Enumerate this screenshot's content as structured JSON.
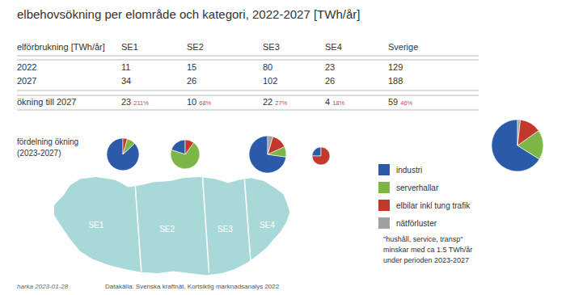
{
  "title": "elbehovsökning per elområde och kategori, 2022-2027 [TWh/år]",
  "annotations": [
    "fördelning ökning\n(2023-2027)",
    "\"hushåll, service, transp\"\nminskar med ca 1.5 TWh/år\nunder perioden 2023-2027",
    "harka 2023-01-28",
    "Datakälla: Svenska kraftnät, Kortsiktig marknadsanalys 2022"
  ],
  "chart_data": [
    {
      "type": "table",
      "xlabel": "elförbrukning [TWh/år]",
      "categories": [
        "SE1",
        "SE2",
        "SE3",
        "SE4",
        "Sverige"
      ],
      "series": [
        {
          "name": "2022",
          "values": [
            11,
            15,
            80,
            23,
            129
          ]
        },
        {
          "name": "2027",
          "values": [
            34,
            26,
            102,
            26,
            188
          ]
        },
        {
          "name": "ökning till 2027",
          "values": [
            23,
            10,
            22,
            4,
            59
          ]
        },
        {
          "values": [
            211,
            68,
            27,
            18,
            46
          ],
          "value_labels": [
            "211%",
            "68%",
            "27%",
            "18%",
            "46%"
          ],
          "color": "#D04070"
        }
      ],
      "data_labels": true
    },
    {
      "type": "pie",
      "title": "SE1",
      "categories": [
        "industri",
        "serverhallar",
        "elbilar inkl tung trafik",
        "nätförluster"
      ],
      "values": [
        20,
        2,
        1,
        0
      ],
      "colors": [
        "#2B5BA8",
        "#7DB646",
        "#C0392B",
        "#A0A0A0"
      ]
    },
    {
      "type": "pie",
      "title": "SE2",
      "categories": [
        "industri",
        "serverhallar",
        "elbilar inkl tung trafik",
        "nätförluster"
      ],
      "values": [
        2,
        7,
        1,
        0
      ],
      "colors": [
        "#2B5BA8",
        "#7DB646",
        "#C0392B",
        "#A0A0A0"
      ]
    },
    {
      "type": "pie",
      "title": "SE3",
      "categories": [
        "industri",
        "serverhallar",
        "elbilar inkl tung trafik",
        "nätförluster"
      ],
      "values": [
        16,
        2,
        3,
        1
      ],
      "colors": [
        "#2B5BA8",
        "#7DB646",
        "#C0392B",
        "#A0A0A0"
      ]
    },
    {
      "type": "pie",
      "title": "SE4",
      "categories": [
        "industri",
        "serverhallar",
        "elbilar inkl tung trafik",
        "nätförluster"
      ],
      "values": [
        1,
        0,
        3,
        0
      ],
      "colors": [
        "#2B5BA8",
        "#7DB646",
        "#C0392B",
        "#A0A0A0"
      ]
    },
    {
      "type": "pie",
      "categories": [
        "industri",
        "serverhallar",
        "elbilar inkl tung trafik",
        "nätförluster"
      ],
      "values": [
        39,
        11,
        8,
        1
      ],
      "colors": [
        "#2B5BA8",
        "#7DB646",
        "#C0392B",
        "#A0A0A0"
      ],
      "legend": "right"
    }
  ]
}
